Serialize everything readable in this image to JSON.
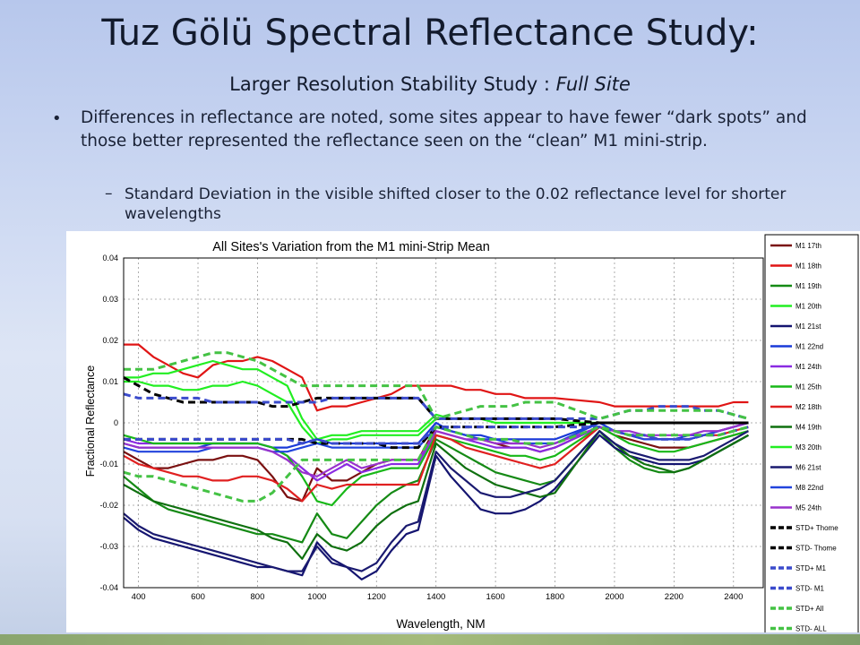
{
  "slide": {
    "title": "Tuz Gölü Spectral Reflectance Study:",
    "subtitle_main": "Larger Resolution Stability Study : ",
    "subtitle_italic": "Full Site",
    "bullet_symbol": "•",
    "bullet_text": "Differences in reflectance are noted, some sites appear to have fewer “dark spots” and those better represented the reflectance seen on the “clean” M1 mini-strip.",
    "sub_dash": "–",
    "sub_text": "Standard Deviation in the visible shifted closer to the 0.02 reflectance level for shorter wavelengths"
  },
  "colors": {
    "background_top": "#b7c7ec",
    "background_bottom": "#c2cfe6",
    "footer": "#8aa56e"
  },
  "chart_data": {
    "type": "line",
    "title": "All Sites's Variation from the M1 mini-Strip Mean",
    "xlabel": "Wavelength, NM",
    "ylabel": "Fractional Reflectance",
    "xlim": [
      350,
      2500
    ],
    "ylim": [
      -0.04,
      0.04
    ],
    "xticks": [
      400,
      600,
      800,
      1000,
      1200,
      1400,
      1600,
      1800,
      2000,
      2200,
      2400
    ],
    "yticks": [
      -0.04,
      -0.03,
      -0.02,
      -0.01,
      0,
      0.01,
      0.02,
      0.03,
      0.04
    ],
    "ytick_labels": [
      "-0.04",
      "-0.03",
      "-0.02",
      "-0.01",
      "0",
      "0.01",
      "0.02",
      "0.03",
      "0.04"
    ],
    "grid": true,
    "legend_position": "right",
    "x": [
      350,
      400,
      450,
      500,
      550,
      600,
      650,
      700,
      750,
      800,
      850,
      900,
      950,
      1000,
      1050,
      1100,
      1150,
      1200,
      1250,
      1300,
      1340,
      1400,
      1450,
      1500,
      1550,
      1600,
      1650,
      1700,
      1750,
      1800,
      1950,
      2000,
      2050,
      2100,
      2150,
      2200,
      2250,
      2300,
      2350,
      2400,
      2450
    ],
    "series": [
      {
        "name": "M1 17th",
        "color": "#7a1010",
        "dash": false,
        "values": [
          -0.007,
          -0.009,
          -0.011,
          -0.011,
          -0.01,
          -0.009,
          -0.009,
          -0.008,
          -0.008,
          -0.009,
          -0.013,
          -0.018,
          -0.019,
          -0.011,
          -0.014,
          -0.014,
          -0.012,
          -0.01,
          -0.009,
          -0.009,
          -0.009,
          -0.001,
          -0.002,
          -0.003,
          -0.004,
          -0.005,
          -0.006,
          -0.006,
          -0.007,
          -0.006,
          -0.001,
          -0.003,
          -0.004,
          -0.005,
          -0.006,
          -0.006,
          -0.006,
          -0.005,
          -0.004,
          -0.003,
          -0.002
        ]
      },
      {
        "name": "M1 18th",
        "color": "#e01515",
        "dash": false,
        "values": [
          0.019,
          0.019,
          0.016,
          0.014,
          0.012,
          0.011,
          0.014,
          0.015,
          0.015,
          0.016,
          0.015,
          0.013,
          0.011,
          0.003,
          0.004,
          0.004,
          0.005,
          0.006,
          0.007,
          0.009,
          0.009,
          0.009,
          0.009,
          0.008,
          0.008,
          0.007,
          0.007,
          0.006,
          0.006,
          0.006,
          0.005,
          0.004,
          0.004,
          0.004,
          0.004,
          0.004,
          0.004,
          0.004,
          0.004,
          0.005,
          0.005
        ]
      },
      {
        "name": "M1 19th",
        "color": "#158a15",
        "dash": false,
        "values": [
          -0.013,
          -0.016,
          -0.019,
          -0.021,
          -0.022,
          -0.023,
          -0.024,
          -0.025,
          -0.026,
          -0.027,
          -0.027,
          -0.028,
          -0.029,
          -0.022,
          -0.027,
          -0.028,
          -0.024,
          -0.02,
          -0.017,
          -0.015,
          -0.014,
          -0.004,
          -0.006,
          -0.008,
          -0.01,
          -0.012,
          -0.013,
          -0.014,
          -0.015,
          -0.014,
          -0.002,
          -0.006,
          -0.009,
          -0.011,
          -0.012,
          -0.012,
          -0.011,
          -0.009,
          -0.007,
          -0.005,
          -0.003
        ]
      },
      {
        "name": "M1 20th",
        "color": "#22ee22",
        "dash": false,
        "values": [
          0.011,
          0.011,
          0.012,
          0.012,
          0.013,
          0.014,
          0.015,
          0.014,
          0.013,
          0.013,
          0.011,
          0.009,
          0.001,
          -0.004,
          -0.003,
          -0.003,
          -0.002,
          -0.002,
          -0.002,
          -0.002,
          -0.002,
          0.002,
          0.001,
          0.001,
          0.001,
          0.0,
          0.0,
          0.0,
          0.0,
          0.0,
          0.0,
          0.0,
          0.0,
          0.0,
          0.0,
          0.0,
          0.0,
          0.0,
          0.0,
          0.0,
          0.0
        ]
      },
      {
        "name": "M1 21st",
        "color": "#141470",
        "dash": false,
        "values": [
          -0.023,
          -0.026,
          -0.028,
          -0.029,
          -0.03,
          -0.031,
          -0.032,
          -0.033,
          -0.034,
          -0.035,
          -0.035,
          -0.036,
          -0.037,
          -0.029,
          -0.033,
          -0.035,
          -0.038,
          -0.036,
          -0.031,
          -0.027,
          -0.026,
          -0.008,
          -0.013,
          -0.017,
          -0.021,
          -0.022,
          -0.022,
          -0.021,
          -0.019,
          -0.016,
          -0.003,
          -0.006,
          -0.008,
          -0.009,
          -0.01,
          -0.01,
          -0.01,
          -0.009,
          -0.007,
          -0.005,
          -0.003
        ]
      },
      {
        "name": "M1 22nd",
        "color": "#1a3ad8",
        "dash": false,
        "values": [
          -0.005,
          -0.006,
          -0.006,
          -0.006,
          -0.006,
          -0.006,
          -0.005,
          -0.005,
          -0.005,
          -0.005,
          -0.006,
          -0.006,
          -0.005,
          -0.004,
          -0.005,
          -0.005,
          -0.005,
          -0.005,
          -0.005,
          -0.005,
          -0.005,
          0.0,
          -0.002,
          -0.003,
          -0.003,
          -0.004,
          -0.004,
          -0.004,
          -0.004,
          -0.004,
          0.0,
          -0.002,
          -0.003,
          -0.003,
          -0.004,
          -0.004,
          -0.003,
          -0.003,
          -0.002,
          -0.001,
          0.0
        ]
      },
      {
        "name": "M1 24th",
        "color": "#8a2be2",
        "dash": false,
        "values": [
          -0.004,
          -0.005,
          -0.005,
          -0.005,
          -0.005,
          -0.005,
          -0.005,
          -0.005,
          -0.005,
          -0.005,
          -0.006,
          -0.008,
          -0.011,
          -0.014,
          -0.012,
          -0.01,
          -0.012,
          -0.011,
          -0.01,
          -0.01,
          -0.01,
          -0.002,
          -0.003,
          -0.004,
          -0.005,
          -0.006,
          -0.006,
          -0.006,
          -0.007,
          -0.006,
          -0.001,
          -0.002,
          -0.003,
          -0.003,
          -0.004,
          -0.004,
          -0.004,
          -0.003,
          -0.002,
          -0.001,
          0.0
        ]
      },
      {
        "name": "M1 25th",
        "color": "#18b818",
        "dash": false,
        "values": [
          -0.003,
          -0.004,
          -0.005,
          -0.005,
          -0.005,
          -0.005,
          -0.005,
          -0.005,
          -0.005,
          -0.005,
          -0.006,
          -0.008,
          -0.013,
          -0.019,
          -0.02,
          -0.016,
          -0.013,
          -0.012,
          -0.011,
          -0.011,
          -0.011,
          -0.003,
          -0.004,
          -0.005,
          -0.006,
          -0.007,
          -0.008,
          -0.008,
          -0.009,
          -0.008,
          -0.001,
          -0.003,
          -0.005,
          -0.006,
          -0.007,
          -0.007,
          -0.006,
          -0.005,
          -0.004,
          -0.003,
          -0.002
        ]
      },
      {
        "name": "M2 18th",
        "color": "#e02020",
        "dash": false,
        "values": [
          -0.008,
          -0.01,
          -0.011,
          -0.012,
          -0.013,
          -0.013,
          -0.014,
          -0.014,
          -0.013,
          -0.013,
          -0.014,
          -0.016,
          -0.019,
          -0.015,
          -0.016,
          -0.015,
          -0.015,
          -0.015,
          -0.015,
          -0.015,
          -0.015,
          -0.003,
          -0.004,
          -0.006,
          -0.007,
          -0.008,
          -0.009,
          -0.01,
          -0.011,
          -0.01,
          -0.001,
          -0.002,
          -0.003,
          -0.004,
          -0.004,
          -0.004,
          -0.004,
          -0.003,
          -0.003,
          -0.002,
          -0.001
        ]
      },
      {
        "name": "M4 19th",
        "color": "#0f700f",
        "dash": false,
        "values": [
          -0.015,
          -0.017,
          -0.019,
          -0.02,
          -0.021,
          -0.022,
          -0.023,
          -0.024,
          -0.025,
          -0.026,
          -0.028,
          -0.029,
          -0.033,
          -0.027,
          -0.03,
          -0.031,
          -0.029,
          -0.025,
          -0.022,
          -0.02,
          -0.019,
          -0.005,
          -0.008,
          -0.011,
          -0.013,
          -0.015,
          -0.016,
          -0.017,
          -0.018,
          -0.017,
          -0.002,
          -0.005,
          -0.008,
          -0.01,
          -0.011,
          -0.012,
          -0.011,
          -0.009,
          -0.007,
          -0.005,
          -0.003
        ]
      },
      {
        "name": "M3 20th",
        "color": "#22ee22",
        "dash": false,
        "values": [
          0.01,
          0.01,
          0.009,
          0.009,
          0.008,
          0.008,
          0.009,
          0.009,
          0.01,
          0.009,
          0.007,
          0.005,
          -0.001,
          -0.005,
          -0.004,
          -0.004,
          -0.003,
          -0.003,
          -0.003,
          -0.003,
          -0.003,
          0.001,
          0.001,
          0.001,
          0.001,
          0.0,
          0.0,
          0.0,
          0.0,
          0.0,
          0.0,
          0.0,
          0.0,
          0.0,
          0.0,
          0.0,
          0.0,
          0.0,
          0.0,
          0.0,
          0.0
        ]
      },
      {
        "name": "M6 21st",
        "color": "#1a1a70",
        "dash": false,
        "values": [
          -0.022,
          -0.025,
          -0.027,
          -0.028,
          -0.029,
          -0.03,
          -0.031,
          -0.032,
          -0.033,
          -0.034,
          -0.035,
          -0.036,
          -0.036,
          -0.03,
          -0.034,
          -0.035,
          -0.036,
          -0.034,
          -0.029,
          -0.025,
          -0.024,
          -0.007,
          -0.011,
          -0.014,
          -0.017,
          -0.018,
          -0.018,
          -0.017,
          -0.016,
          -0.014,
          -0.002,
          -0.005,
          -0.007,
          -0.008,
          -0.009,
          -0.009,
          -0.009,
          -0.008,
          -0.006,
          -0.004,
          -0.002
        ]
      },
      {
        "name": "M8 22nd",
        "color": "#2244dd",
        "dash": false,
        "values": [
          -0.006,
          -0.007,
          -0.007,
          -0.007,
          -0.007,
          -0.007,
          -0.006,
          -0.006,
          -0.006,
          -0.006,
          -0.007,
          -0.007,
          -0.006,
          -0.005,
          -0.006,
          -0.006,
          -0.006,
          -0.006,
          -0.006,
          -0.006,
          -0.006,
          -0.001,
          -0.002,
          -0.003,
          -0.004,
          -0.004,
          -0.005,
          -0.005,
          -0.005,
          -0.005,
          0.0,
          -0.002,
          -0.003,
          -0.004,
          -0.004,
          -0.004,
          -0.004,
          -0.003,
          -0.002,
          -0.001,
          0.0
        ]
      },
      {
        "name": "M5 24th",
        "color": "#9932cc",
        "dash": false,
        "values": [
          -0.005,
          -0.006,
          -0.006,
          -0.006,
          -0.006,
          -0.006,
          -0.006,
          -0.006,
          -0.006,
          -0.006,
          -0.007,
          -0.009,
          -0.012,
          -0.013,
          -0.011,
          -0.009,
          -0.011,
          -0.01,
          -0.009,
          -0.009,
          -0.009,
          -0.002,
          -0.003,
          -0.004,
          -0.004,
          -0.005,
          -0.005,
          -0.005,
          -0.006,
          -0.005,
          -0.001,
          -0.002,
          -0.002,
          -0.003,
          -0.003,
          -0.003,
          -0.003,
          -0.002,
          -0.002,
          -0.001,
          0.0
        ]
      },
      {
        "name": "STD+ Thome",
        "color": "#000000",
        "dash": true,
        "values": [
          0.011,
          0.009,
          0.007,
          0.006,
          0.005,
          0.005,
          0.005,
          0.005,
          0.005,
          0.005,
          0.004,
          0.004,
          0.005,
          0.006,
          0.006,
          0.006,
          0.006,
          0.006,
          0.006,
          0.006,
          0.006,
          0.001,
          0.001,
          0.001,
          0.001,
          0.001,
          0.001,
          0.001,
          0.001,
          0.001,
          0.0,
          0.0,
          0.0,
          0.0,
          0.0,
          0.0,
          0.0,
          0.0,
          0.0,
          0.0,
          0.0
        ]
      },
      {
        "name": "STD- Thome",
        "color": "#000000",
        "dash": true,
        "values": [
          -0.004,
          -0.004,
          -0.004,
          -0.004,
          -0.004,
          -0.004,
          -0.004,
          -0.004,
          -0.004,
          -0.004,
          -0.004,
          -0.004,
          -0.004,
          -0.005,
          -0.005,
          -0.005,
          -0.005,
          -0.005,
          -0.006,
          -0.006,
          -0.006,
          -0.001,
          -0.001,
          -0.001,
          -0.001,
          -0.001,
          -0.001,
          -0.001,
          -0.001,
          -0.001,
          0.0,
          0.0,
          0.0,
          0.0,
          0.0,
          0.0,
          0.0,
          0.0,
          0.0,
          0.0,
          0.0
        ]
      },
      {
        "name": "STD+ M1",
        "color": "#3b4bcc",
        "dash": true,
        "values": [
          0.007,
          0.006,
          0.006,
          0.006,
          0.006,
          0.006,
          0.005,
          0.005,
          0.005,
          0.005,
          0.005,
          0.005,
          0.005,
          0.005,
          0.006,
          0.006,
          0.006,
          0.006,
          0.006,
          0.006,
          0.006,
          0.001,
          0.001,
          0.001,
          0.001,
          0.001,
          0.001,
          0.001,
          0.001,
          0.001,
          0.001,
          0.002,
          0.003,
          0.003,
          0.004,
          0.004,
          0.004,
          0.003,
          0.003,
          0.002,
          0.001
        ]
      },
      {
        "name": "STD- M1",
        "color": "#3b4bcc",
        "dash": true,
        "values": [
          -0.004,
          -0.004,
          -0.004,
          -0.004,
          -0.004,
          -0.004,
          -0.004,
          -0.004,
          -0.004,
          -0.004,
          -0.004,
          -0.004,
          -0.005,
          -0.004,
          -0.005,
          -0.005,
          -0.005,
          -0.005,
          -0.005,
          -0.005,
          -0.005,
          -0.001,
          -0.001,
          -0.001,
          -0.001,
          -0.001,
          -0.001,
          -0.001,
          -0.001,
          -0.001,
          -0.001,
          -0.002,
          -0.003,
          -0.003,
          -0.004,
          -0.004,
          -0.004,
          -0.003,
          -0.003,
          -0.002,
          -0.001
        ]
      },
      {
        "name": "STD+ All",
        "color": "#44c244",
        "dash": true,
        "values": [
          0.013,
          0.013,
          0.013,
          0.014,
          0.015,
          0.016,
          0.017,
          0.017,
          0.016,
          0.015,
          0.013,
          0.011,
          0.009,
          0.009,
          0.009,
          0.009,
          0.009,
          0.009,
          0.009,
          0.009,
          0.009,
          0.001,
          0.002,
          0.003,
          0.004,
          0.004,
          0.004,
          0.005,
          0.005,
          0.005,
          0.001,
          0.002,
          0.003,
          0.003,
          0.003,
          0.003,
          0.003,
          0.003,
          0.003,
          0.002,
          0.001
        ]
      },
      {
        "name": "STD- ALL",
        "color": "#44c244",
        "dash": true,
        "values": [
          -0.012,
          -0.013,
          -0.013,
          -0.014,
          -0.015,
          -0.016,
          -0.017,
          -0.018,
          -0.019,
          -0.019,
          -0.017,
          -0.013,
          -0.009,
          -0.009,
          -0.009,
          -0.009,
          -0.009,
          -0.009,
          -0.009,
          -0.009,
          -0.009,
          -0.001,
          -0.002,
          -0.003,
          -0.004,
          -0.004,
          -0.004,
          -0.005,
          -0.005,
          -0.005,
          -0.001,
          -0.002,
          -0.003,
          -0.003,
          -0.003,
          -0.003,
          -0.003,
          -0.003,
          -0.003,
          -0.002,
          -0.001
        ]
      }
    ]
  }
}
